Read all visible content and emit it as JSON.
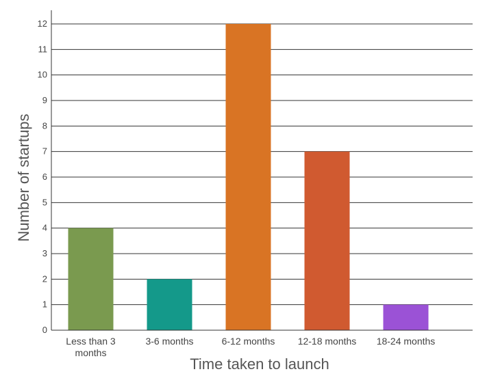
{
  "chart_data": {
    "type": "bar",
    "title": "",
    "xlabel": "Time taken to launch",
    "ylabel": "Number of startups",
    "categories": [
      [
        "Less than 3",
        "months"
      ],
      [
        "3-6 months"
      ],
      [
        "6-12 months"
      ],
      [
        "12-18 months"
      ],
      [
        "18-24 months"
      ]
    ],
    "values": [
      4,
      2,
      12,
      7,
      1
    ],
    "colors": [
      "#7a9a4f",
      "#14998a",
      "#d97424",
      "#d05a30",
      "#9b52d6"
    ],
    "ylim": [
      0,
      12.5
    ],
    "yticks": [
      0,
      1,
      2,
      3,
      4,
      5,
      6,
      7,
      8,
      9,
      10,
      11,
      12
    ],
    "grid": true,
    "legend": "none"
  }
}
